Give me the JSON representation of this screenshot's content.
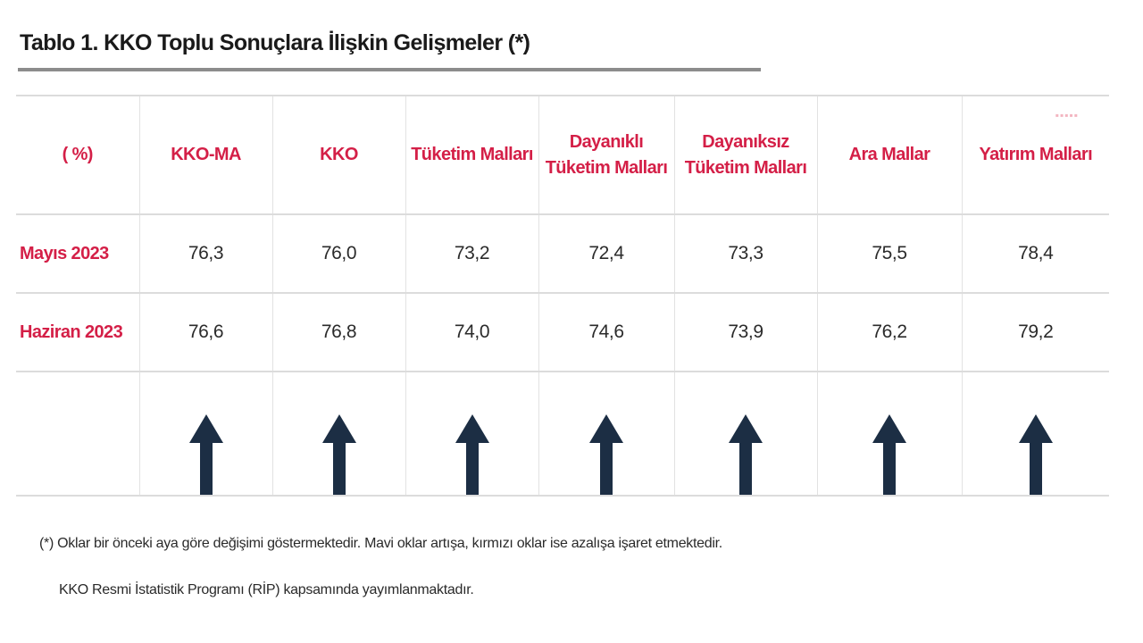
{
  "title": "Tablo 1. KKO Toplu Sonuçlara İlişkin Gelişmeler (*)",
  "table": {
    "corner_label": "( %)",
    "columns": [
      {
        "line1": "KKO-MA",
        "line2": ""
      },
      {
        "line1": "KKO",
        "line2": ""
      },
      {
        "line1": "Tüketim Malları",
        "line2": ""
      },
      {
        "line1": "Dayanıklı",
        "line2": "Tüketim Malları"
      },
      {
        "line1": "Dayanıksız",
        "line2": "Tüketim Malları"
      },
      {
        "line1": "Ara Mallar",
        "line2": ""
      },
      {
        "line1": "Yatırım Malları",
        "line2": ""
      }
    ],
    "rows": [
      {
        "label": "Mayıs 2023",
        "values": [
          "76,3",
          "76,0",
          "73,2",
          "72,4",
          "73,3",
          "75,5",
          "78,4"
        ]
      },
      {
        "label": "Haziran 2023",
        "values": [
          "76,6",
          "76,8",
          "74,0",
          "74,6",
          "73,9",
          "76,2",
          "79,2"
        ]
      }
    ],
    "arrows": [
      "up",
      "up",
      "up",
      "up",
      "up",
      "up",
      "up"
    ],
    "arrow_color": "#1c2e44",
    "header_color": "#d41f47"
  },
  "footnotes": {
    "note1": "(*) Oklar bir önceki aya göre değişimi göstermektedir. Mavi oklar artışa, kırmızı oklar ise azalışa işaret etmektedir.",
    "note2": "KKO Resmi İstatistik Programı (RİP) kapsamında yayımlanmaktadır."
  }
}
